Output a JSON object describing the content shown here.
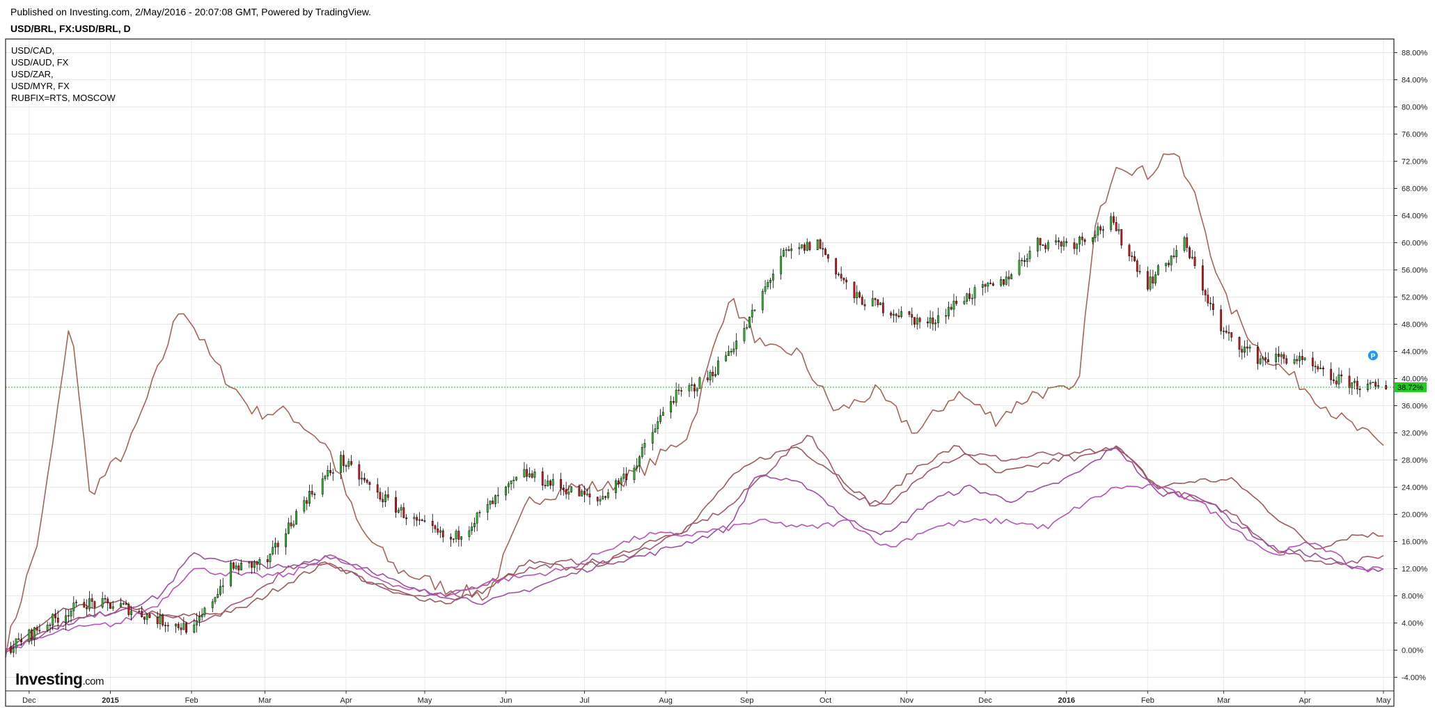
{
  "header": {
    "published": "Published on Investing.com, 2/May/2016 - 20:07:08 GMT, Powered by TradingView.",
    "symbol": "USD/BRL, FX:USD/BRL, D"
  },
  "legend": [
    "USD/CAD,",
    "USD/AUD, FX",
    "USD/ZAR,",
    "USD/MYR, FX",
    "RUBFIX=RTS, MOSCOW"
  ],
  "logo": {
    "main": "Investing",
    "suffix": ".com"
  },
  "price_badge": {
    "label": "38.72%",
    "value": 38.72,
    "color": "#22cc22"
  },
  "markers": [
    {
      "label": "P",
      "date": "2016-04-27",
      "value": 43.4,
      "color": "#2196f3"
    }
  ],
  "colors": {
    "up": "#2fc02f",
    "down": "#d21818",
    "wick": "#000000",
    "rub": "#a86356",
    "myr": "#9a5a5a",
    "zar": "#a5556e",
    "cad": "#9b4fa0",
    "aud": "#b553b8",
    "grid": "#e9e9e9",
    "baseline": "#22bb22"
  },
  "chart_data": {
    "type": "line",
    "y_axis_unit": "%",
    "ylim": [
      -6,
      90
    ],
    "y_ticks": [
      "88.00%",
      "84.00%",
      "80.00%",
      "76.00%",
      "72.00%",
      "68.00%",
      "64.00%",
      "60.00%",
      "56.00%",
      "52.00%",
      "48.00%",
      "44.00%",
      "40.00%",
      "36.00%",
      "32.00%",
      "28.00%",
      "24.00%",
      "20.00%",
      "16.00%",
      "12.00%",
      "8.00%",
      "4.00%",
      "0.00%",
      "-4.00%"
    ],
    "x_range": [
      "2014-11-22",
      "2016-05-05"
    ],
    "x_ticks": [
      {
        "date": "2014-12-01",
        "label": "Dec",
        "bold": false
      },
      {
        "date": "2015-01-01",
        "label": "2015",
        "bold": true
      },
      {
        "date": "2015-02-01",
        "label": "Feb",
        "bold": false
      },
      {
        "date": "2015-03-01",
        "label": "Mar",
        "bold": false
      },
      {
        "date": "2015-04-01",
        "label": "Apr",
        "bold": false
      },
      {
        "date": "2015-05-01",
        "label": "May",
        "bold": false
      },
      {
        "date": "2015-06-01",
        "label": "Jun",
        "bold": false
      },
      {
        "date": "2015-07-01",
        "label": "Jul",
        "bold": false
      },
      {
        "date": "2015-08-01",
        "label": "Aug",
        "bold": false
      },
      {
        "date": "2015-09-01",
        "label": "Sep",
        "bold": false
      },
      {
        "date": "2015-10-01",
        "label": "Oct",
        "bold": false
      },
      {
        "date": "2015-11-01",
        "label": "Nov",
        "bold": false
      },
      {
        "date": "2015-12-01",
        "label": "Dec",
        "bold": false
      },
      {
        "date": "2016-01-01",
        "label": "2016",
        "bold": true
      },
      {
        "date": "2016-02-01",
        "label": "Feb",
        "bold": false
      },
      {
        "date": "2016-03-01",
        "label": "Mar",
        "bold": false
      },
      {
        "date": "2016-04-01",
        "label": "Apr",
        "bold": false
      },
      {
        "date": "2016-05-01",
        "label": "May",
        "bold": false
      }
    ],
    "candles": {
      "name": "USD/BRL",
      "dates": [
        "2014-11-24",
        "2014-12-08",
        "2014-12-22",
        "2015-01-05",
        "2015-01-19",
        "2015-02-02",
        "2015-02-16",
        "2015-03-02",
        "2015-03-16",
        "2015-03-30",
        "2015-04-13",
        "2015-04-27",
        "2015-05-11",
        "2015-05-25",
        "2015-06-08",
        "2015-06-22",
        "2015-07-06",
        "2015-07-20",
        "2015-08-03",
        "2015-08-17",
        "2015-08-31",
        "2015-09-14",
        "2015-09-28",
        "2015-10-12",
        "2015-10-26",
        "2015-11-09",
        "2015-11-23",
        "2015-12-07",
        "2015-12-21",
        "2016-01-04",
        "2016-01-18",
        "2016-02-01",
        "2016-02-15",
        "2016-02-29",
        "2016-03-14",
        "2016-03-28",
        "2016-04-11",
        "2016-04-25",
        "2016-05-02"
      ],
      "close": [
        0.5,
        4,
        7,
        6.5,
        4.5,
        3,
        12,
        13,
        22,
        28,
        23,
        19,
        16,
        21,
        26,
        24,
        22,
        27,
        37,
        40,
        47,
        58,
        60,
        52,
        50,
        48,
        52,
        54,
        60,
        60,
        63,
        54,
        60,
        47,
        43,
        43,
        40,
        38.7,
        38.72
      ]
    },
    "series": [
      {
        "name": "RUBFIX=RTS",
        "x": [
          "2014-11-22",
          "2014-12-05",
          "2014-12-17",
          "2014-12-24",
          "2015-01-08",
          "2015-01-20",
          "2015-01-28",
          "2015-02-10",
          "2015-02-25",
          "2015-03-10",
          "2015-03-25",
          "2015-04-06",
          "2015-04-20",
          "2015-05-10",
          "2015-05-25",
          "2015-06-10",
          "2015-06-25",
          "2015-07-10",
          "2015-07-25",
          "2015-08-10",
          "2015-08-25",
          "2015-09-08",
          "2015-09-20",
          "2015-10-05",
          "2015-10-20",
          "2015-11-05",
          "2015-11-20",
          "2015-12-05",
          "2015-12-20",
          "2016-01-05",
          "2016-01-12",
          "2016-01-20",
          "2016-02-01",
          "2016-02-10",
          "2016-02-20",
          "2016-03-01",
          "2016-03-15",
          "2016-03-31",
          "2016-04-15",
          "2016-05-01"
        ],
        "values": [
          0,
          17,
          49,
          23,
          30,
          42,
          51,
          42,
          35,
          35,
          30,
          18,
          12,
          9,
          8,
          22,
          24,
          24,
          27,
          32,
          52,
          44,
          44,
          35,
          38,
          32,
          38,
          34,
          38,
          38,
          62,
          72,
          70,
          74,
          66,
          52,
          44,
          39,
          34,
          30
        ]
      },
      {
        "name": "USD/MYR",
        "x": [
          "2014-11-22",
          "2014-12-15",
          "2015-01-05",
          "2015-01-20",
          "2015-02-01",
          "2015-02-20",
          "2015-03-10",
          "2015-03-25",
          "2015-04-10",
          "2015-04-25",
          "2015-05-10",
          "2015-05-25",
          "2015-06-10",
          "2015-06-25",
          "2015-07-10",
          "2015-07-25",
          "2015-08-10",
          "2015-08-25",
          "2015-09-05",
          "2015-09-20",
          "2015-10-05",
          "2015-10-20",
          "2015-11-05",
          "2015-11-20",
          "2015-12-05",
          "2015-12-20",
          "2016-01-05",
          "2016-01-20",
          "2016-02-05",
          "2016-02-20",
          "2016-03-05",
          "2016-03-20",
          "2016-04-05",
          "2016-04-20",
          "2016-05-01"
        ],
        "values": [
          0,
          6,
          7,
          5,
          5,
          6,
          10,
          13,
          10,
          8,
          7,
          9,
          13,
          12,
          13,
          16,
          18,
          25,
          28,
          30,
          26,
          21,
          27,
          30,
          26,
          27,
          29,
          30,
          24,
          25,
          25,
          20,
          15,
          17,
          17
        ]
      },
      {
        "name": "USD/ZAR",
        "x": [
          "2014-11-22",
          "2014-12-15",
          "2015-01-05",
          "2015-01-20",
          "2015-02-05",
          "2015-02-20",
          "2015-03-10",
          "2015-03-25",
          "2015-04-10",
          "2015-04-25",
          "2015-05-10",
          "2015-05-25",
          "2015-06-10",
          "2015-06-25",
          "2015-07-10",
          "2015-07-25",
          "2015-08-10",
          "2015-08-25",
          "2015-09-05",
          "2015-09-25",
          "2015-10-10",
          "2015-10-25",
          "2015-11-10",
          "2015-11-25",
          "2015-12-10",
          "2015-12-25",
          "2016-01-05",
          "2016-01-20",
          "2016-02-05",
          "2016-02-20",
          "2016-03-05",
          "2016-03-20",
          "2016-04-05",
          "2016-04-20",
          "2016-05-01"
        ],
        "values": [
          0,
          4,
          6,
          5,
          4,
          7,
          12,
          13,
          10,
          8,
          8,
          10,
          12,
          13,
          13,
          15,
          18,
          21,
          25,
          32,
          23,
          21,
          27,
          29,
          28,
          29,
          28,
          30,
          24,
          22,
          20,
          15,
          13,
          13,
          14
        ]
      },
      {
        "name": "USD/CAD",
        "x": [
          "2014-11-22",
          "2014-12-15",
          "2015-01-05",
          "2015-01-20",
          "2015-02-01",
          "2015-02-20",
          "2015-03-10",
          "2015-03-25",
          "2015-04-10",
          "2015-04-25",
          "2015-05-10",
          "2015-05-25",
          "2015-06-10",
          "2015-06-25",
          "2015-07-10",
          "2015-07-25",
          "2015-08-10",
          "2015-08-25",
          "2015-09-05",
          "2015-09-25",
          "2015-10-10",
          "2015-10-25",
          "2015-11-10",
          "2015-11-25",
          "2015-12-10",
          "2015-12-25",
          "2016-01-05",
          "2016-01-20",
          "2016-02-05",
          "2016-02-20",
          "2016-03-05",
          "2016-03-20",
          "2016-04-05",
          "2016-04-20",
          "2016-05-01"
        ],
        "values": [
          0,
          4,
          6,
          8,
          14,
          13,
          12,
          14,
          12,
          9,
          8,
          7,
          9,
          11,
          13,
          14,
          16,
          18,
          26,
          24,
          19,
          17,
          22,
          24,
          22,
          24,
          26,
          30,
          23,
          23,
          19,
          15,
          14,
          12,
          12
        ]
      },
      {
        "name": "USD/AUD",
        "x": [
          "2014-11-22",
          "2014-12-15",
          "2015-01-05",
          "2015-01-20",
          "2015-02-01",
          "2015-02-20",
          "2015-03-10",
          "2015-03-25",
          "2015-04-10",
          "2015-04-25",
          "2015-05-10",
          "2015-05-25",
          "2015-06-10",
          "2015-06-25",
          "2015-07-10",
          "2015-07-25",
          "2015-08-10",
          "2015-08-25",
          "2015-09-05",
          "2015-09-25",
          "2015-10-10",
          "2015-10-25",
          "2015-11-10",
          "2015-11-25",
          "2015-12-10",
          "2015-12-25",
          "2016-01-05",
          "2016-01-20",
          "2016-02-05",
          "2016-02-20",
          "2016-03-05",
          "2016-03-20",
          "2016-04-05",
          "2016-04-20",
          "2016-05-01"
        ],
        "values": [
          0,
          3,
          4,
          7,
          12,
          11,
          11,
          14,
          11,
          9,
          8,
          10,
          11,
          12,
          15,
          17,
          17,
          18,
          19,
          18,
          19,
          15,
          18,
          19,
          19,
          18,
          21,
          24,
          24,
          22,
          18,
          14,
          16,
          12,
          12
        ]
      }
    ],
    "current_value": 38.72,
    "grid": true,
    "legend_position": "top-left"
  }
}
